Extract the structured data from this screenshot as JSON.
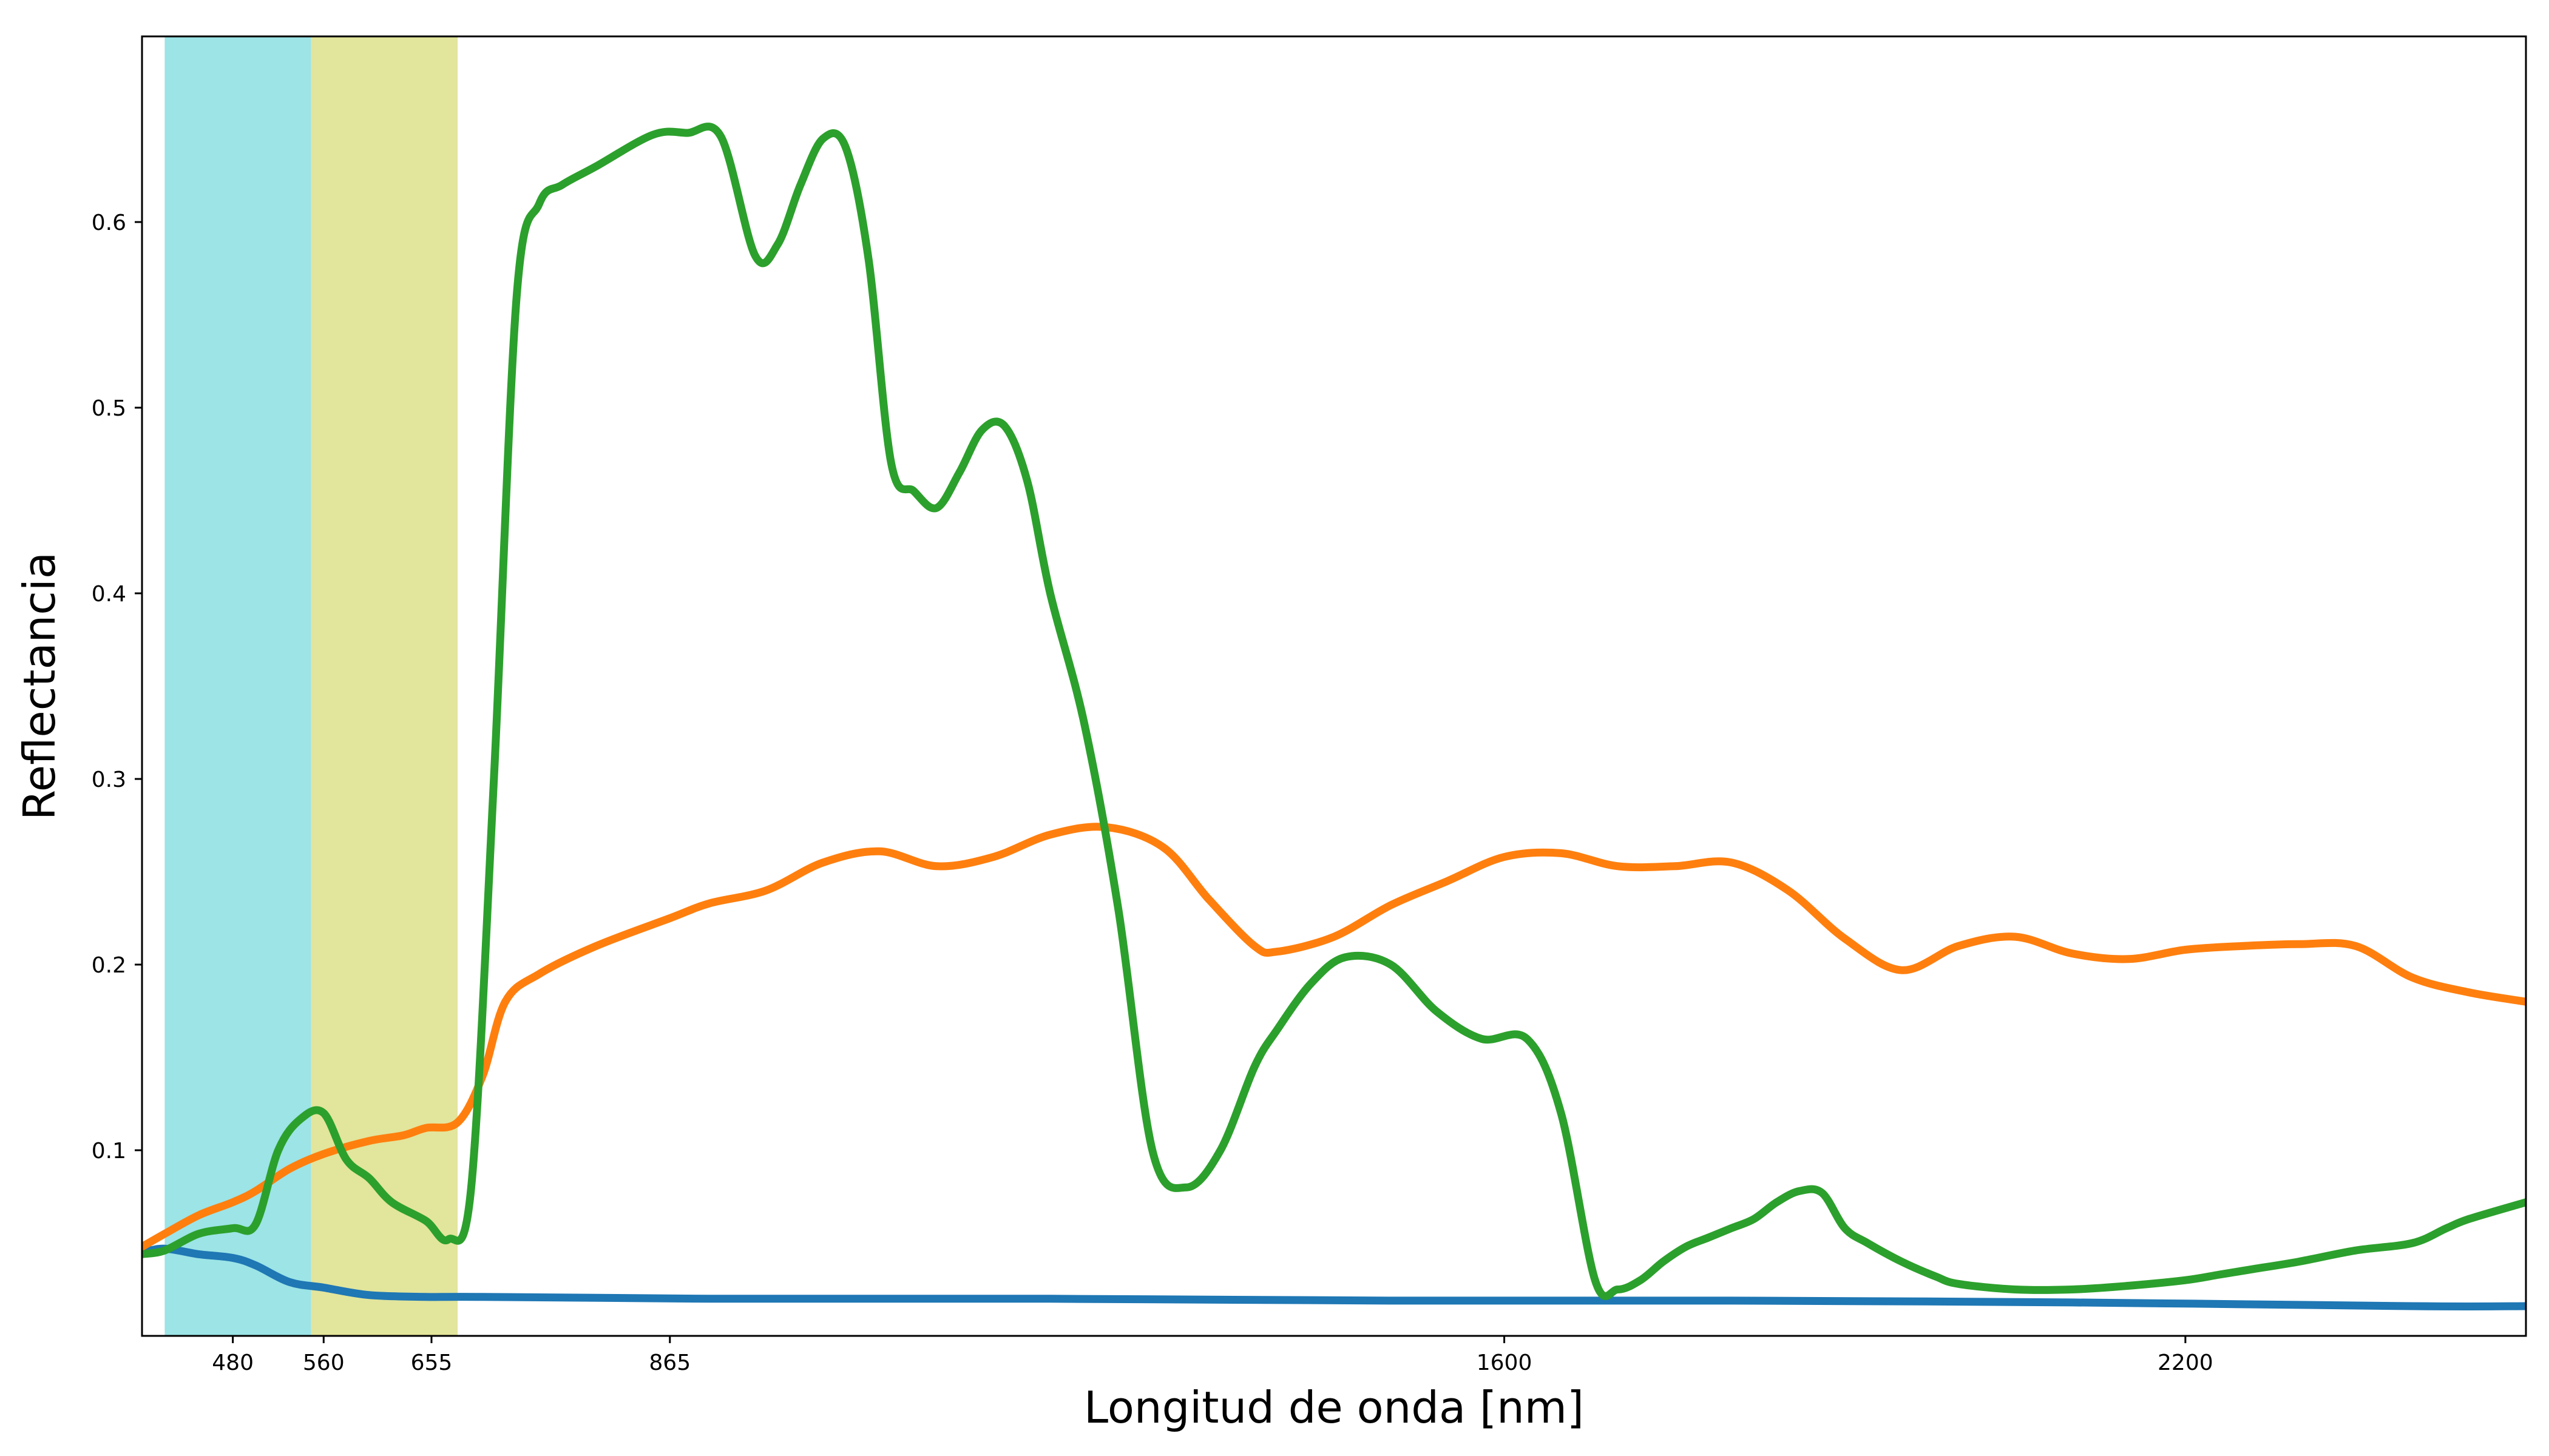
{
  "chart_data": {
    "type": "line",
    "xlabel": "Longitud de onda [nm]",
    "ylabel": "Reflectancia",
    "xlim": [
      400,
      2500
    ],
    "ylim": [
      0,
      0.7
    ],
    "xticks": [
      480,
      560,
      655,
      865,
      1600,
      2200
    ],
    "yticks": [
      0.1,
      0.2,
      0.3,
      0.4,
      0.5,
      0.6
    ],
    "grid": false,
    "bands": [
      {
        "x0": 420,
        "x1": 549,
        "color": "#9ce4e6"
      },
      {
        "x0": 549,
        "x1": 678,
        "color": "#e2e59c"
      }
    ],
    "series": [
      {
        "color": "#1f77b4",
        "x": [
          400,
          420,
          450,
          480,
          500,
          530,
          560,
          600,
          650,
          700,
          900,
          1200,
          1500,
          1800,
          2100,
          2400,
          2500
        ],
        "y": [
          0.045,
          0.047,
          0.044,
          0.042,
          0.038,
          0.029,
          0.026,
          0.022,
          0.021,
          0.021,
          0.02,
          0.02,
          0.019,
          0.019,
          0.018,
          0.016,
          0.016
        ]
      },
      {
        "color": "#ff7f0e",
        "x": [
          400,
          420,
          450,
          480,
          500,
          530,
          560,
          600,
          630,
          650,
          678,
          700,
          720,
          750,
          800,
          865,
          900,
          950,
          1000,
          1050,
          1100,
          1150,
          1200,
          1250,
          1300,
          1340,
          1380,
          1400,
          1450,
          1500,
          1550,
          1600,
          1650,
          1700,
          1750,
          1800,
          1850,
          1900,
          1950,
          2000,
          2050,
          2100,
          2150,
          2200,
          2250,
          2300,
          2350,
          2400,
          2450,
          2500
        ],
        "y": [
          0.048,
          0.055,
          0.065,
          0.072,
          0.078,
          0.09,
          0.098,
          0.105,
          0.108,
          0.112,
          0.115,
          0.14,
          0.18,
          0.195,
          0.21,
          0.225,
          0.233,
          0.24,
          0.255,
          0.261,
          0.253,
          0.258,
          0.27,
          0.274,
          0.263,
          0.235,
          0.21,
          0.207,
          0.215,
          0.232,
          0.245,
          0.258,
          0.26,
          0.253,
          0.253,
          0.255,
          0.24,
          0.214,
          0.197,
          0.21,
          0.215,
          0.206,
          0.203,
          0.208,
          0.21,
          0.211,
          0.21,
          0.193,
          0.185,
          0.18
        ]
      },
      {
        "color": "#2ca02c",
        "x": [
          400,
          420,
          450,
          480,
          500,
          520,
          540,
          560,
          580,
          600,
          620,
          650,
          670,
          690,
          710,
          730,
          750,
          770,
          800,
          850,
          880,
          910,
          940,
          960,
          980,
          1000,
          1020,
          1040,
          1060,
          1080,
          1100,
          1120,
          1140,
          1160,
          1180,
          1200,
          1230,
          1260,
          1290,
          1320,
          1350,
          1380,
          1400,
          1430,
          1460,
          1500,
          1540,
          1580,
          1620,
          1650,
          1680,
          1700,
          1720,
          1740,
          1760,
          1780,
          1800,
          1820,
          1840,
          1860,
          1880,
          1900,
          1920,
          1950,
          1980,
          2000,
          2050,
          2100,
          2150,
          2200,
          2230,
          2260,
          2300,
          2350,
          2400,
          2430,
          2450,
          2500
        ],
        "y": [
          0.044,
          0.046,
          0.055,
          0.058,
          0.06,
          0.1,
          0.117,
          0.12,
          0.095,
          0.085,
          0.072,
          0.062,
          0.052,
          0.08,
          0.3,
          0.56,
          0.61,
          0.62,
          0.63,
          0.647,
          0.648,
          0.646,
          0.582,
          0.588,
          0.62,
          0.645,
          0.64,
          0.58,
          0.47,
          0.455,
          0.446,
          0.465,
          0.488,
          0.49,
          0.46,
          0.4,
          0.33,
          0.23,
          0.1,
          0.08,
          0.1,
          0.145,
          0.165,
          0.19,
          0.204,
          0.2,
          0.175,
          0.16,
          0.16,
          0.12,
          0.03,
          0.025,
          0.03,
          0.04,
          0.048,
          0.053,
          0.058,
          0.063,
          0.072,
          0.078,
          0.077,
          0.058,
          0.05,
          0.04,
          0.032,
          0.028,
          0.025,
          0.025,
          0.027,
          0.03,
          0.033,
          0.036,
          0.04,
          0.046,
          0.05,
          0.058,
          0.063,
          0.072
        ]
      }
    ]
  }
}
